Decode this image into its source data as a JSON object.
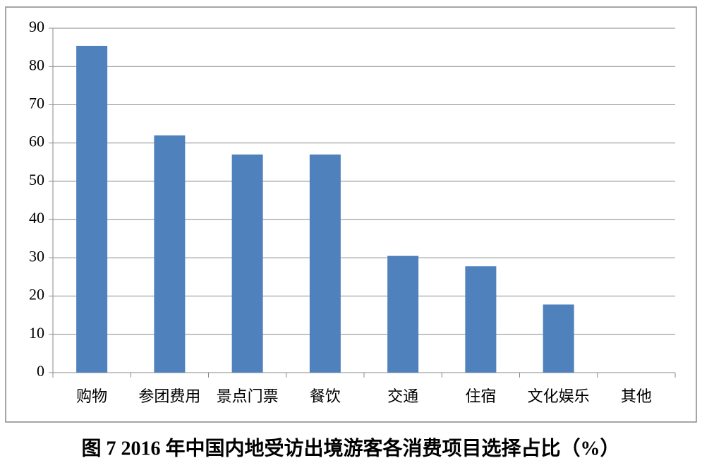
{
  "chart_data": {
    "type": "bar",
    "title": "图 7 2016 年中国内地受访出境游客各消费项目选择占比（%）",
    "categories": [
      "购物",
      "参团费用",
      "景点门票",
      "餐饮",
      "交通",
      "住宿",
      "文化娱乐",
      "其他"
    ],
    "values": [
      85.4,
      62,
      57,
      57,
      30.5,
      27.8,
      17.8,
      0
    ],
    "color": "#4f81bd",
    "ylim": [
      0,
      90
    ],
    "yticks": [
      0,
      10,
      20,
      30,
      40,
      50,
      60,
      70,
      80,
      90
    ],
    "grid": true
  }
}
